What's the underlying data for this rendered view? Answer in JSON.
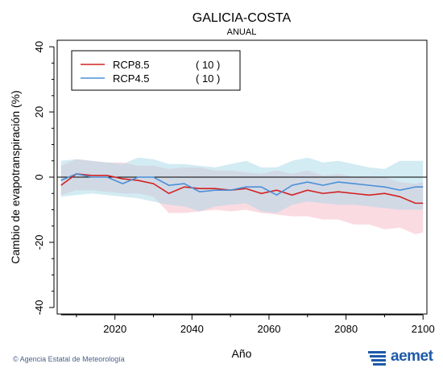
{
  "chart_data": {
    "type": "line",
    "title": "GALICIA-COSTA",
    "subtitle": "ANUAL",
    "xlabel": "Año",
    "ylabel": "Cambio de evapotranspiración (%)",
    "xlim": [
      2005,
      2101
    ],
    "ylim": [
      -42,
      42
    ],
    "xticks": [
      2020,
      2040,
      2060,
      2080,
      2100
    ],
    "yticks": [
      40,
      20,
      0,
      -20,
      -40
    ],
    "zero_line": true,
    "legend_position": "top-left",
    "x": [
      2006,
      2010,
      2014,
      2018,
      2022,
      2026,
      2030,
      2034,
      2038,
      2042,
      2046,
      2050,
      2054,
      2058,
      2062,
      2066,
      2070,
      2074,
      2078,
      2082,
      2086,
      2090,
      2094,
      2098,
      2100
    ],
    "series": [
      {
        "name": "RCP8.5",
        "count": "( 10 )",
        "color": "#d42020",
        "band_color": "#f7b7c6",
        "values": [
          -2.5,
          1.0,
          0.5,
          0.5,
          -0.5,
          -1.0,
          -2.0,
          -5.0,
          -3.0,
          -3.5,
          -3.5,
          -4.0,
          -3.5,
          -5.0,
          -4.0,
          -5.5,
          -4.0,
          -5.0,
          -4.5,
          -5.0,
          -5.5,
          -5.0,
          -6.0,
          -8.0,
          -8.0
        ],
        "upper": [
          3.5,
          5.5,
          5.0,
          4.5,
          4.5,
          3.5,
          3.5,
          2.5,
          3.0,
          3.0,
          2.0,
          2.0,
          1.5,
          1.0,
          2.0,
          1.0,
          2.0,
          0.5,
          1.0,
          0.0,
          0.0,
          0.0,
          -1.5,
          -2.0,
          -1.5
        ],
        "lower": [
          -5.5,
          -4.0,
          -4.0,
          -4.5,
          -5.0,
          -5.0,
          -6.0,
          -11.0,
          -11.0,
          -10.5,
          -10.0,
          -10.5,
          -10.0,
          -11.0,
          -11.5,
          -12.0,
          -12.0,
          -13.0,
          -13.0,
          -14.5,
          -14.5,
          -16.0,
          -15.5,
          -17.5,
          -17.0
        ]
      },
      {
        "name": "RCP4.5",
        "count": "( 10 )",
        "color": "#4a90d6",
        "band_color": "#a8d8e8",
        "values": [
          -1.0,
          1.0,
          0.0,
          0.0,
          -2.0,
          0.0,
          0.0,
          -2.5,
          -2.0,
          -4.5,
          -4.0,
          -4.0,
          -3.0,
          -3.0,
          -5.5,
          -2.5,
          -1.5,
          -2.5,
          -1.5,
          -2.0,
          -2.5,
          -3.0,
          -4.0,
          -3.0,
          -3.0
        ],
        "upper": [
          5.0,
          5.5,
          5.0,
          4.5,
          4.0,
          6.0,
          5.5,
          4.0,
          4.0,
          3.5,
          3.0,
          4.0,
          5.0,
          3.0,
          3.0,
          5.0,
          6.0,
          4.5,
          5.0,
          4.0,
          3.0,
          2.5,
          5.0,
          5.0,
          5.0
        ],
        "lower": [
          -6.0,
          -5.5,
          -5.0,
          -5.5,
          -6.0,
          -6.5,
          -7.5,
          -8.5,
          -9.0,
          -10.5,
          -9.0,
          -8.5,
          -8.0,
          -10.5,
          -11.0,
          -8.5,
          -7.5,
          -8.0,
          -8.5,
          -8.5,
          -9.0,
          -9.5,
          -10.0,
          -10.0,
          -10.0
        ]
      }
    ]
  },
  "footer": {
    "credit": "© Agencia Estatal de Meteorología",
    "logo_text": "aemet"
  }
}
